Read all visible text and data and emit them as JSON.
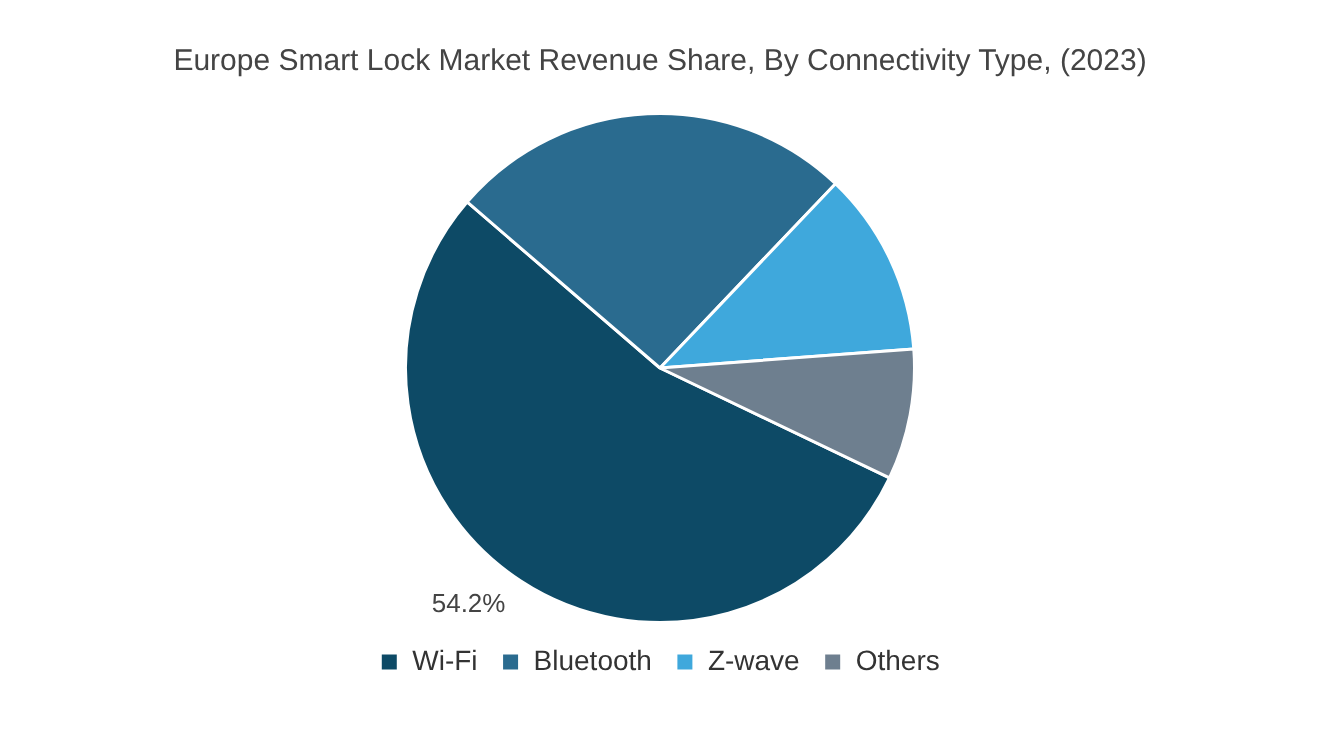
{
  "chart_data": {
    "type": "pie",
    "title": "Europe Smart Lock Market Revenue Share, By Connectivity Type, (2023)",
    "categories": [
      "Wi-Fi",
      "Bluetooth",
      "Z-wave",
      "Others"
    ],
    "values": [
      54.2,
      25.8,
      11.7,
      8.3
    ],
    "colors": [
      "#0d4a66",
      "#2a6b8f",
      "#3fa8dc",
      "#6e7f8f"
    ],
    "value_labels": [
      "54.2%",
      null,
      null,
      null
    ],
    "legend": "bottom"
  }
}
